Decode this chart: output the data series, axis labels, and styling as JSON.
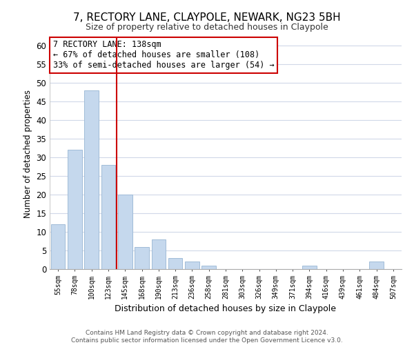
{
  "title": "7, RECTORY LANE, CLAYPOLE, NEWARK, NG23 5BH",
  "subtitle": "Size of property relative to detached houses in Claypole",
  "xlabel": "Distribution of detached houses by size in Claypole",
  "ylabel": "Number of detached properties",
  "bar_labels": [
    "55sqm",
    "78sqm",
    "100sqm",
    "123sqm",
    "145sqm",
    "168sqm",
    "190sqm",
    "213sqm",
    "236sqm",
    "258sqm",
    "281sqm",
    "303sqm",
    "326sqm",
    "349sqm",
    "371sqm",
    "394sqm",
    "416sqm",
    "439sqm",
    "461sqm",
    "484sqm",
    "507sqm"
  ],
  "bar_values": [
    12,
    32,
    48,
    28,
    20,
    6,
    8,
    3,
    2,
    1,
    0,
    0,
    0,
    0,
    0,
    1,
    0,
    0,
    0,
    2,
    0
  ],
  "bar_color": "#c5d8ed",
  "bar_edge_color": "#a0bcd8",
  "vline_color": "#cc0000",
  "vline_index": 3.5,
  "ylim": [
    0,
    62
  ],
  "yticks": [
    0,
    5,
    10,
    15,
    20,
    25,
    30,
    35,
    40,
    45,
    50,
    55,
    60
  ],
  "annotation_title": "7 RECTORY LANE: 138sqm",
  "annotation_line1": "← 67% of detached houses are smaller (108)",
  "annotation_line2": "33% of semi-detached houses are larger (54) →",
  "annotation_box_color": "#ffffff",
  "annotation_box_edge": "#cc0000",
  "footer_line1": "Contains HM Land Registry data © Crown copyright and database right 2024.",
  "footer_line2": "Contains public sector information licensed under the Open Government Licence v3.0.",
  "background_color": "#ffffff",
  "grid_color": "#d0d8e8"
}
